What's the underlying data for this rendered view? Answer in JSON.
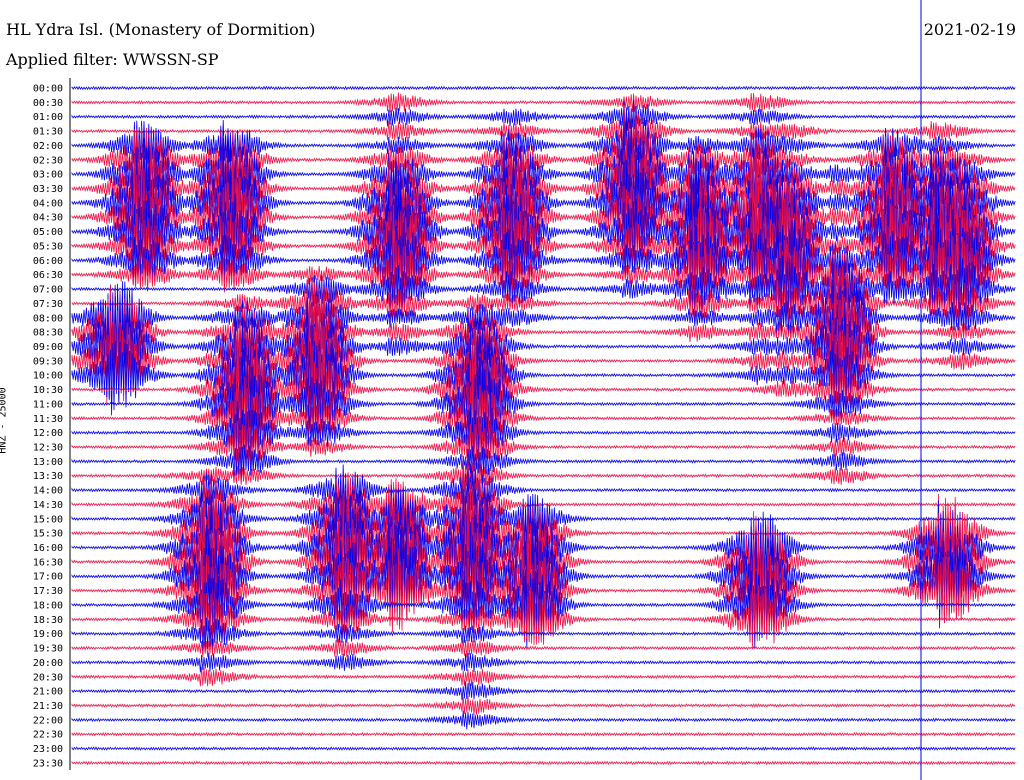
{
  "header": {
    "station": "HL Ydra Isl. (Monastery of Dormition)",
    "filter": "Applied filter: WWSSN-SP",
    "date": "2021-02-19",
    "channel": "HNZ - 25000"
  },
  "colors": {
    "blue": "#0000ee",
    "red": "#ee1144",
    "axis": "#000000"
  },
  "chart_data": {
    "type": "line",
    "title": "HL Ydra Isl. (Monastery of Dormition)",
    "ylabel": "HNZ - 25000",
    "rows": [
      "00:00",
      "00:30",
      "01:00",
      "01:30",
      "02:00",
      "02:30",
      "03:00",
      "03:30",
      "04:00",
      "04:30",
      "05:00",
      "05:30",
      "06:00",
      "06:30",
      "07:00",
      "07:30",
      "08:00",
      "08:30",
      "09:00",
      "09:30",
      "10:00",
      "10:30",
      "11:00",
      "11:30",
      "12:00",
      "12:30",
      "13:00",
      "13:30",
      "14:00",
      "14:30",
      "15:00",
      "15:30",
      "16:00",
      "16:30",
      "17:00",
      "17:30",
      "18:00",
      "18:30",
      "19:00",
      "19:30",
      "20:00",
      "20:30",
      "21:00",
      "21:30",
      "22:00",
      "22:30",
      "23:00",
      "23:30"
    ],
    "series_colors": [
      "blue",
      "red"
    ],
    "events": [
      {
        "minute": 10,
        "rows": [
          4,
          13
        ],
        "peak_row": 8,
        "color": "blue"
      },
      {
        "minute": 23,
        "rows": [
          4,
          13
        ],
        "peak_row": 8,
        "color": "blue"
      },
      {
        "minute": 6,
        "rows": [
          16,
          20
        ],
        "peak_row": 18,
        "color": "blue"
      },
      {
        "minute": 48,
        "rows": [
          1,
          18
        ],
        "peak_row": 10,
        "color": "blue"
      },
      {
        "minute": 65,
        "rows": [
          2,
          16
        ],
        "peak_row": 9,
        "color": "blue"
      },
      {
        "minute": 25,
        "rows": [
          15,
          27
        ],
        "peak_row": 21,
        "color": "red"
      },
      {
        "minute": 36,
        "rows": [
          13,
          25
        ],
        "peak_row": 19,
        "color": "red"
      },
      {
        "minute": 60,
        "rows": [
          15,
          26
        ],
        "peak_row": 21,
        "color": "red"
      },
      {
        "minute": 83,
        "rows": [
          1,
          14
        ],
        "peak_row": 7,
        "color": "red"
      },
      {
        "minute": 93,
        "rows": [
          4,
          17
        ],
        "peak_row": 10,
        "color": "blue"
      },
      {
        "minute": 102,
        "rows": [
          1,
          20
        ],
        "peak_row": 9,
        "color": "red"
      },
      {
        "minute": 106,
        "rows": [
          3,
          21
        ],
        "peak_row": 11,
        "color": "red"
      },
      {
        "minute": 114,
        "rows": [
          6,
          27
        ],
        "peak_row": 17,
        "color": "red"
      },
      {
        "minute": 122,
        "rows": [
          4,
          14
        ],
        "peak_row": 9,
        "color": "red"
      },
      {
        "minute": 129,
        "rows": [
          3,
          16
        ],
        "peak_row": 10,
        "color": "red"
      },
      {
        "minute": 132,
        "rows": [
          5,
          19
        ],
        "peak_row": 11,
        "color": "blue"
      },
      {
        "minute": 20,
        "rows": [
          27,
          41
        ],
        "peak_row": 33,
        "color": "red"
      },
      {
        "minute": 40,
        "rows": [
          28,
          40
        ],
        "peak_row": 32,
        "color": "blue"
      },
      {
        "minute": 48,
        "rows": [
          29,
          35
        ],
        "peak_row": 33,
        "color": "red"
      },
      {
        "minute": 59,
        "rows": [
          27,
          44
        ],
        "peak_row": 32,
        "color": "blue"
      },
      {
        "minute": 68,
        "rows": [
          30,
          37
        ],
        "peak_row": 34,
        "color": "blue"
      },
      {
        "minute": 102,
        "rows": [
          32,
          37
        ],
        "peak_row": 34,
        "color": "blue"
      },
      {
        "minute": 130,
        "rows": [
          31,
          35
        ],
        "peak_row": 33,
        "color": "red"
      }
    ]
  }
}
